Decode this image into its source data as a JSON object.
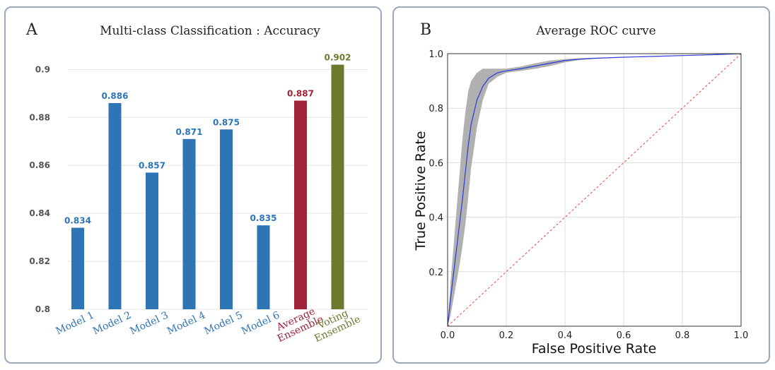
{
  "panels": [
    {
      "letter": "A",
      "chart_data": {
        "type": "bar",
        "title": "Multi-class Classification : Accuracy",
        "categories": [
          {
            "line1": "Model 1",
            "line2": ""
          },
          {
            "line1": "Model 2",
            "line2": ""
          },
          {
            "line1": "Model 3",
            "line2": ""
          },
          {
            "line1": "Model 4",
            "line2": ""
          },
          {
            "line1": "Model 5",
            "line2": ""
          },
          {
            "line1": "Model 6",
            "line2": ""
          },
          {
            "line1": "Average",
            "line2": "Ensemble"
          },
          {
            "line1": "Voting",
            "line2": "Ensemble"
          }
        ],
        "values": [
          0.834,
          0.886,
          0.857,
          0.871,
          0.875,
          0.835,
          0.887,
          0.902
        ],
        "value_labels": [
          "0.834",
          "0.886",
          "0.857",
          "0.871",
          "0.875",
          "0.835",
          "0.887",
          "0.902"
        ],
        "colors": [
          "#2e75b6",
          "#2e75b6",
          "#2e75b6",
          "#2e75b6",
          "#2e75b6",
          "#2e75b6",
          "#a0233a",
          "#6b7a2e"
        ],
        "ylim": [
          0.8,
          0.906
        ],
        "yticks": [
          0.8,
          0.82,
          0.84,
          0.86,
          0.88,
          0.9
        ],
        "ytick_labels": [
          "0.8",
          "0.82",
          "0.84",
          "0.86",
          "0.88",
          "0.9"
        ],
        "grid": true
      }
    },
    {
      "letter": "B",
      "chart_data": {
        "type": "line",
        "title": "Average ROC curve",
        "xlabel": "False  Positive  Rate",
        "ylabel": "True  Positive  Rate",
        "xlim": [
          0,
          1
        ],
        "ylim": [
          0,
          1
        ],
        "xticks": [
          0.0,
          0.2,
          0.4,
          0.6,
          0.8,
          1.0
        ],
        "xtick_labels": [
          "0.0",
          "0.2",
          "0.4",
          "0.6",
          "0.8",
          "1.0"
        ],
        "yticks": [
          0.2,
          0.4,
          0.6,
          0.8,
          1.0
        ],
        "ytick_labels": [
          "0.2",
          "0.4",
          "0.6",
          "0.8",
          "1.0"
        ],
        "grid": true,
        "series": [
          {
            "color": "#2b3bd6",
            "x": [
              0.0,
              0.01,
              0.02,
              0.03,
              0.04,
              0.05,
              0.06,
              0.07,
              0.08,
              0.1,
              0.12,
              0.14,
              0.17,
              0.2,
              0.25,
              0.3,
              0.35,
              0.4,
              0.45,
              0.5,
              0.6,
              0.7,
              0.8,
              0.9,
              1.0
            ],
            "y": [
              0.0,
              0.1,
              0.19,
              0.28,
              0.37,
              0.46,
              0.56,
              0.66,
              0.74,
              0.83,
              0.88,
              0.91,
              0.93,
              0.937,
              0.945,
              0.955,
              0.965,
              0.975,
              0.98,
              0.983,
              0.987,
              0.99,
              0.993,
              0.996,
              1.0
            ],
            "band_upper": [
              0.0,
              0.16,
              0.29,
              0.42,
              0.55,
              0.68,
              0.78,
              0.86,
              0.9,
              0.93,
              0.945,
              0.945,
              0.945,
              0.945,
              0.953,
              0.965,
              0.975,
              0.98,
              0.983,
              0.985,
              0.988,
              0.991,
              0.994,
              0.997,
              1.0
            ],
            "band_lower": [
              0.0,
              0.04,
              0.1,
              0.16,
              0.22,
              0.29,
              0.37,
              0.47,
              0.58,
              0.73,
              0.83,
              0.89,
              0.915,
              0.93,
              0.937,
              0.945,
              0.955,
              0.968,
              0.977,
              0.981,
              0.986,
              0.989,
              0.992,
              0.995,
              1.0
            ]
          },
          {
            "color": "#e8453a",
            "style": "dashed",
            "x": [
              0,
              1
            ],
            "y": [
              0,
              1
            ]
          }
        ]
      }
    }
  ]
}
